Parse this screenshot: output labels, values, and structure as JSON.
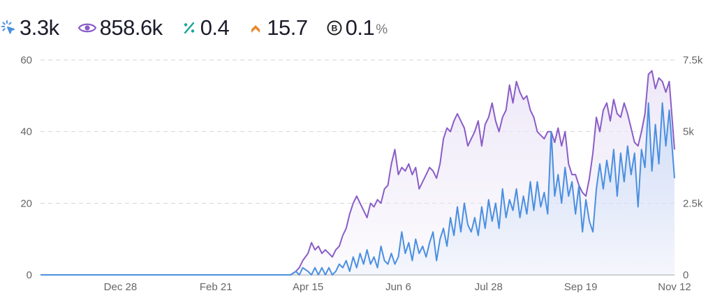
{
  "metrics": [
    {
      "icon": "click-icon",
      "value": "3.3k",
      "color": "#4a90e2"
    },
    {
      "icon": "eye-icon",
      "value": "858.6k",
      "color": "#8a5cc7"
    },
    {
      "icon": "percent-icon",
      "value": "0.4",
      "color": "#1aa39a"
    },
    {
      "icon": "chevron-up-icon",
      "value": "15.7",
      "color": "#e9892c"
    },
    {
      "icon": "b-circle-icon",
      "value": "0.1",
      "unit": "%",
      "color": "#222222"
    }
  ],
  "chart_data": {
    "type": "line",
    "x_ticks": [
      "Dec 28",
      "Feb 21",
      "Apr 15",
      "Jun 6",
      "Jul 28",
      "Sep 19",
      "Nov 12"
    ],
    "x_range": [
      "Nov 12 (prev. year)",
      "Nov 12"
    ],
    "y_left": {
      "ticks": [
        "0",
        "20",
        "40",
        "60"
      ],
      "range": [
        0,
        60
      ]
    },
    "y_right": {
      "ticks": [
        "0",
        "2.5k",
        "5k",
        "7.5k"
      ],
      "range": [
        0,
        7500
      ]
    },
    "grid": true,
    "series": [
      {
        "axis": "left",
        "color": "#4a8fe0",
        "fill": "#cfdff7",
        "points": [
          [
            "Nov 12",
            0
          ],
          [
            "Dec 28",
            0
          ],
          [
            "Feb 21",
            0
          ],
          [
            "Apr 5",
            0
          ],
          [
            "Apr 8",
            1
          ],
          [
            "Apr 10",
            0
          ],
          [
            "Apr 12",
            2
          ],
          [
            "Apr 15",
            1
          ],
          [
            "Apr 17",
            0
          ],
          [
            "Apr 19",
            2
          ],
          [
            "Apr 21",
            0
          ],
          [
            "Apr 23",
            2
          ],
          [
            "Apr 25",
            0
          ],
          [
            "Apr 27",
            2
          ],
          [
            "Apr 29",
            0
          ],
          [
            "May 1",
            1
          ],
          [
            "May 3",
            3
          ],
          [
            "May 5",
            2
          ],
          [
            "May 7",
            4
          ],
          [
            "May 9",
            1
          ],
          [
            "May 11",
            5
          ],
          [
            "May 13",
            2
          ],
          [
            "May 15",
            6
          ],
          [
            "May 17",
            3
          ],
          [
            "May 19",
            7
          ],
          [
            "May 21",
            3
          ],
          [
            "May 23",
            5
          ],
          [
            "May 25",
            2
          ],
          [
            "May 27",
            8
          ],
          [
            "May 29",
            4
          ],
          [
            "May 31",
            3
          ],
          [
            "Jun 2",
            6
          ],
          [
            "Jun 4",
            3
          ],
          [
            "Jun 6",
            5
          ],
          [
            "Jun 8",
            12
          ],
          [
            "Jun 10",
            6
          ],
          [
            "Jun 12",
            9
          ],
          [
            "Jun 14",
            4
          ],
          [
            "Jun 16",
            10
          ],
          [
            "Jun 18",
            6
          ],
          [
            "Jun 20",
            8
          ],
          [
            "Jun 22",
            5
          ],
          [
            "Jun 24",
            9
          ],
          [
            "Jun 26",
            12
          ],
          [
            "Jun 28",
            4
          ],
          [
            "Jun 30",
            10
          ],
          [
            "Jul 2",
            13
          ],
          [
            "Jul 4",
            8
          ],
          [
            "Jul 6",
            16
          ],
          [
            "Jul 8",
            11
          ],
          [
            "Jul 10",
            19
          ],
          [
            "Jul 12",
            12
          ],
          [
            "Jul 14",
            20
          ],
          [
            "Jul 16",
            14
          ],
          [
            "Jul 18",
            12
          ],
          [
            "Jul 20",
            16
          ],
          [
            "Jul 22",
            11
          ],
          [
            "Jul 24",
            19
          ],
          [
            "Jul 26",
            13
          ],
          [
            "Jul 28",
            21
          ],
          [
            "Jul 30",
            15
          ],
          [
            "Aug 1",
            20
          ],
          [
            "Aug 3",
            13
          ],
          [
            "Aug 5",
            24
          ],
          [
            "Aug 7",
            16
          ],
          [
            "Aug 9",
            21
          ],
          [
            "Aug 11",
            18
          ],
          [
            "Aug 13",
            24
          ],
          [
            "Aug 15",
            16
          ],
          [
            "Aug 17",
            22
          ],
          [
            "Aug 19",
            17
          ],
          [
            "Aug 21",
            26
          ],
          [
            "Aug 23",
            18
          ],
          [
            "Aug 25",
            26
          ],
          [
            "Aug 27",
            19
          ],
          [
            "Aug 29",
            23
          ],
          [
            "Aug 31",
            17
          ],
          [
            "Sep 2",
            40
          ],
          [
            "Sep 4",
            22
          ],
          [
            "Sep 6",
            28
          ],
          [
            "Sep 8",
            20
          ],
          [
            "Sep 10",
            30
          ],
          [
            "Sep 12",
            22
          ],
          [
            "Sep 14",
            26
          ],
          [
            "Sep 16",
            17
          ],
          [
            "Sep 18",
            25
          ],
          [
            "Sep 20",
            12
          ],
          [
            "Sep 22",
            21
          ],
          [
            "Sep 24",
            15
          ],
          [
            "Sep 26",
            12
          ],
          [
            "Sep 28",
            24
          ],
          [
            "Sep 30",
            31
          ],
          [
            "Oct 2",
            24
          ],
          [
            "Oct 4",
            32
          ],
          [
            "Oct 6",
            26
          ],
          [
            "Oct 8",
            35
          ],
          [
            "Oct 10",
            22
          ],
          [
            "Oct 12",
            34
          ],
          [
            "Oct 14",
            26
          ],
          [
            "Oct 16",
            36
          ],
          [
            "Oct 18",
            28
          ],
          [
            "Oct 20",
            34
          ],
          [
            "Oct 22",
            19
          ],
          [
            "Oct 24",
            35
          ],
          [
            "Oct 26",
            30
          ],
          [
            "Oct 28",
            48
          ],
          [
            "Oct 30",
            29
          ],
          [
            "Nov 1",
            42
          ],
          [
            "Nov 3",
            31
          ],
          [
            "Nov 5",
            48
          ],
          [
            "Nov 7",
            36
          ],
          [
            "Nov 9",
            46
          ],
          [
            "Nov 12",
            27
          ]
        ]
      },
      {
        "axis": "left",
        "color": "#8a5cc7",
        "fill": "#ece6f7",
        "points": [
          [
            "Nov 12",
            0
          ],
          [
            "Dec 28",
            0
          ],
          [
            "Feb 21",
            0
          ],
          [
            "Apr 5",
            0
          ],
          [
            "Apr 8",
            1
          ],
          [
            "Apr 10",
            2
          ],
          [
            "Apr 12",
            4
          ],
          [
            "Apr 15",
            6
          ],
          [
            "Apr 17",
            9
          ],
          [
            "Apr 19",
            7
          ],
          [
            "Apr 21",
            8
          ],
          [
            "Apr 23",
            6
          ],
          [
            "Apr 25",
            7
          ],
          [
            "Apr 27",
            6
          ],
          [
            "Apr 29",
            5
          ],
          [
            "May 1",
            7
          ],
          [
            "May 3",
            8
          ],
          [
            "May 5",
            11
          ],
          [
            "May 7",
            13
          ],
          [
            "May 9",
            17
          ],
          [
            "May 11",
            20
          ],
          [
            "May 13",
            22
          ],
          [
            "May 15",
            20
          ],
          [
            "May 17",
            18
          ],
          [
            "May 19",
            16
          ],
          [
            "May 21",
            20
          ],
          [
            "May 23",
            19
          ],
          [
            "May 25",
            21
          ],
          [
            "May 27",
            20
          ],
          [
            "May 29",
            24
          ],
          [
            "May 31",
            25
          ],
          [
            "Jun 2",
            31
          ],
          [
            "Jun 4",
            35
          ],
          [
            "Jun 6",
            28
          ],
          [
            "Jun 8",
            30
          ],
          [
            "Jun 10",
            29
          ],
          [
            "Jun 12",
            31
          ],
          [
            "Jun 14",
            28
          ],
          [
            "Jun 16",
            30
          ],
          [
            "Jun 18",
            24
          ],
          [
            "Jun 20",
            26
          ],
          [
            "Jun 22",
            28
          ],
          [
            "Jun 24",
            30
          ],
          [
            "Jun 26",
            29
          ],
          [
            "Jun 28",
            27
          ],
          [
            "Jun 30",
            31
          ],
          [
            "Jul 2",
            38
          ],
          [
            "Jul 4",
            41
          ],
          [
            "Jul 6",
            40
          ],
          [
            "Jul 8",
            43
          ],
          [
            "Jul 10",
            45
          ],
          [
            "Jul 12",
            43
          ],
          [
            "Jul 14",
            41
          ],
          [
            "Jul 16",
            36
          ],
          [
            "Jul 18",
            38
          ],
          [
            "Jul 20",
            40
          ],
          [
            "Jul 22",
            43
          ],
          [
            "Jul 24",
            36
          ],
          [
            "Jul 26",
            42
          ],
          [
            "Jul 28",
            44
          ],
          [
            "Jul 30",
            48
          ],
          [
            "Aug 1",
            43
          ],
          [
            "Aug 3",
            40
          ],
          [
            "Aug 5",
            44
          ],
          [
            "Aug 7",
            46
          ],
          [
            "Aug 9",
            53
          ],
          [
            "Aug 11",
            48
          ],
          [
            "Aug 13",
            54
          ],
          [
            "Aug 15",
            51
          ],
          [
            "Aug 17",
            49
          ],
          [
            "Aug 19",
            50
          ],
          [
            "Aug 21",
            46
          ],
          [
            "Aug 23",
            44
          ],
          [
            "Aug 25",
            40
          ],
          [
            "Aug 27",
            39
          ],
          [
            "Aug 29",
            38
          ],
          [
            "Aug 31",
            40
          ],
          [
            "Sep 2",
            40
          ],
          [
            "Sep 4",
            37
          ],
          [
            "Sep 6",
            41
          ],
          [
            "Sep 8",
            36
          ],
          [
            "Sep 10",
            40
          ],
          [
            "Sep 12",
            31
          ],
          [
            "Sep 14",
            28
          ],
          [
            "Sep 16",
            28
          ],
          [
            "Sep 18",
            25
          ],
          [
            "Sep 20",
            23
          ],
          [
            "Sep 22",
            22
          ],
          [
            "Sep 24",
            27
          ],
          [
            "Sep 26",
            34
          ],
          [
            "Sep 28",
            44
          ],
          [
            "Sep 30",
            40
          ],
          [
            "Oct 2",
            46
          ],
          [
            "Oct 4",
            48
          ],
          [
            "Oct 6",
            43
          ],
          [
            "Oct 8",
            49
          ],
          [
            "Oct 10",
            45
          ],
          [
            "Oct 12",
            44
          ],
          [
            "Oct 14",
            48
          ],
          [
            "Oct 16",
            45
          ],
          [
            "Oct 18",
            41
          ],
          [
            "Oct 20",
            37
          ],
          [
            "Oct 22",
            36
          ],
          [
            "Oct 24",
            40
          ],
          [
            "Oct 26",
            45
          ],
          [
            "Oct 28",
            56
          ],
          [
            "Oct 30",
            57
          ],
          [
            "Nov 1",
            52
          ],
          [
            "Nov 3",
            55
          ],
          [
            "Nov 5",
            54
          ],
          [
            "Nov 7",
            51
          ],
          [
            "Nov 9",
            54
          ],
          [
            "Nov 12",
            35
          ]
        ]
      }
    ]
  }
}
